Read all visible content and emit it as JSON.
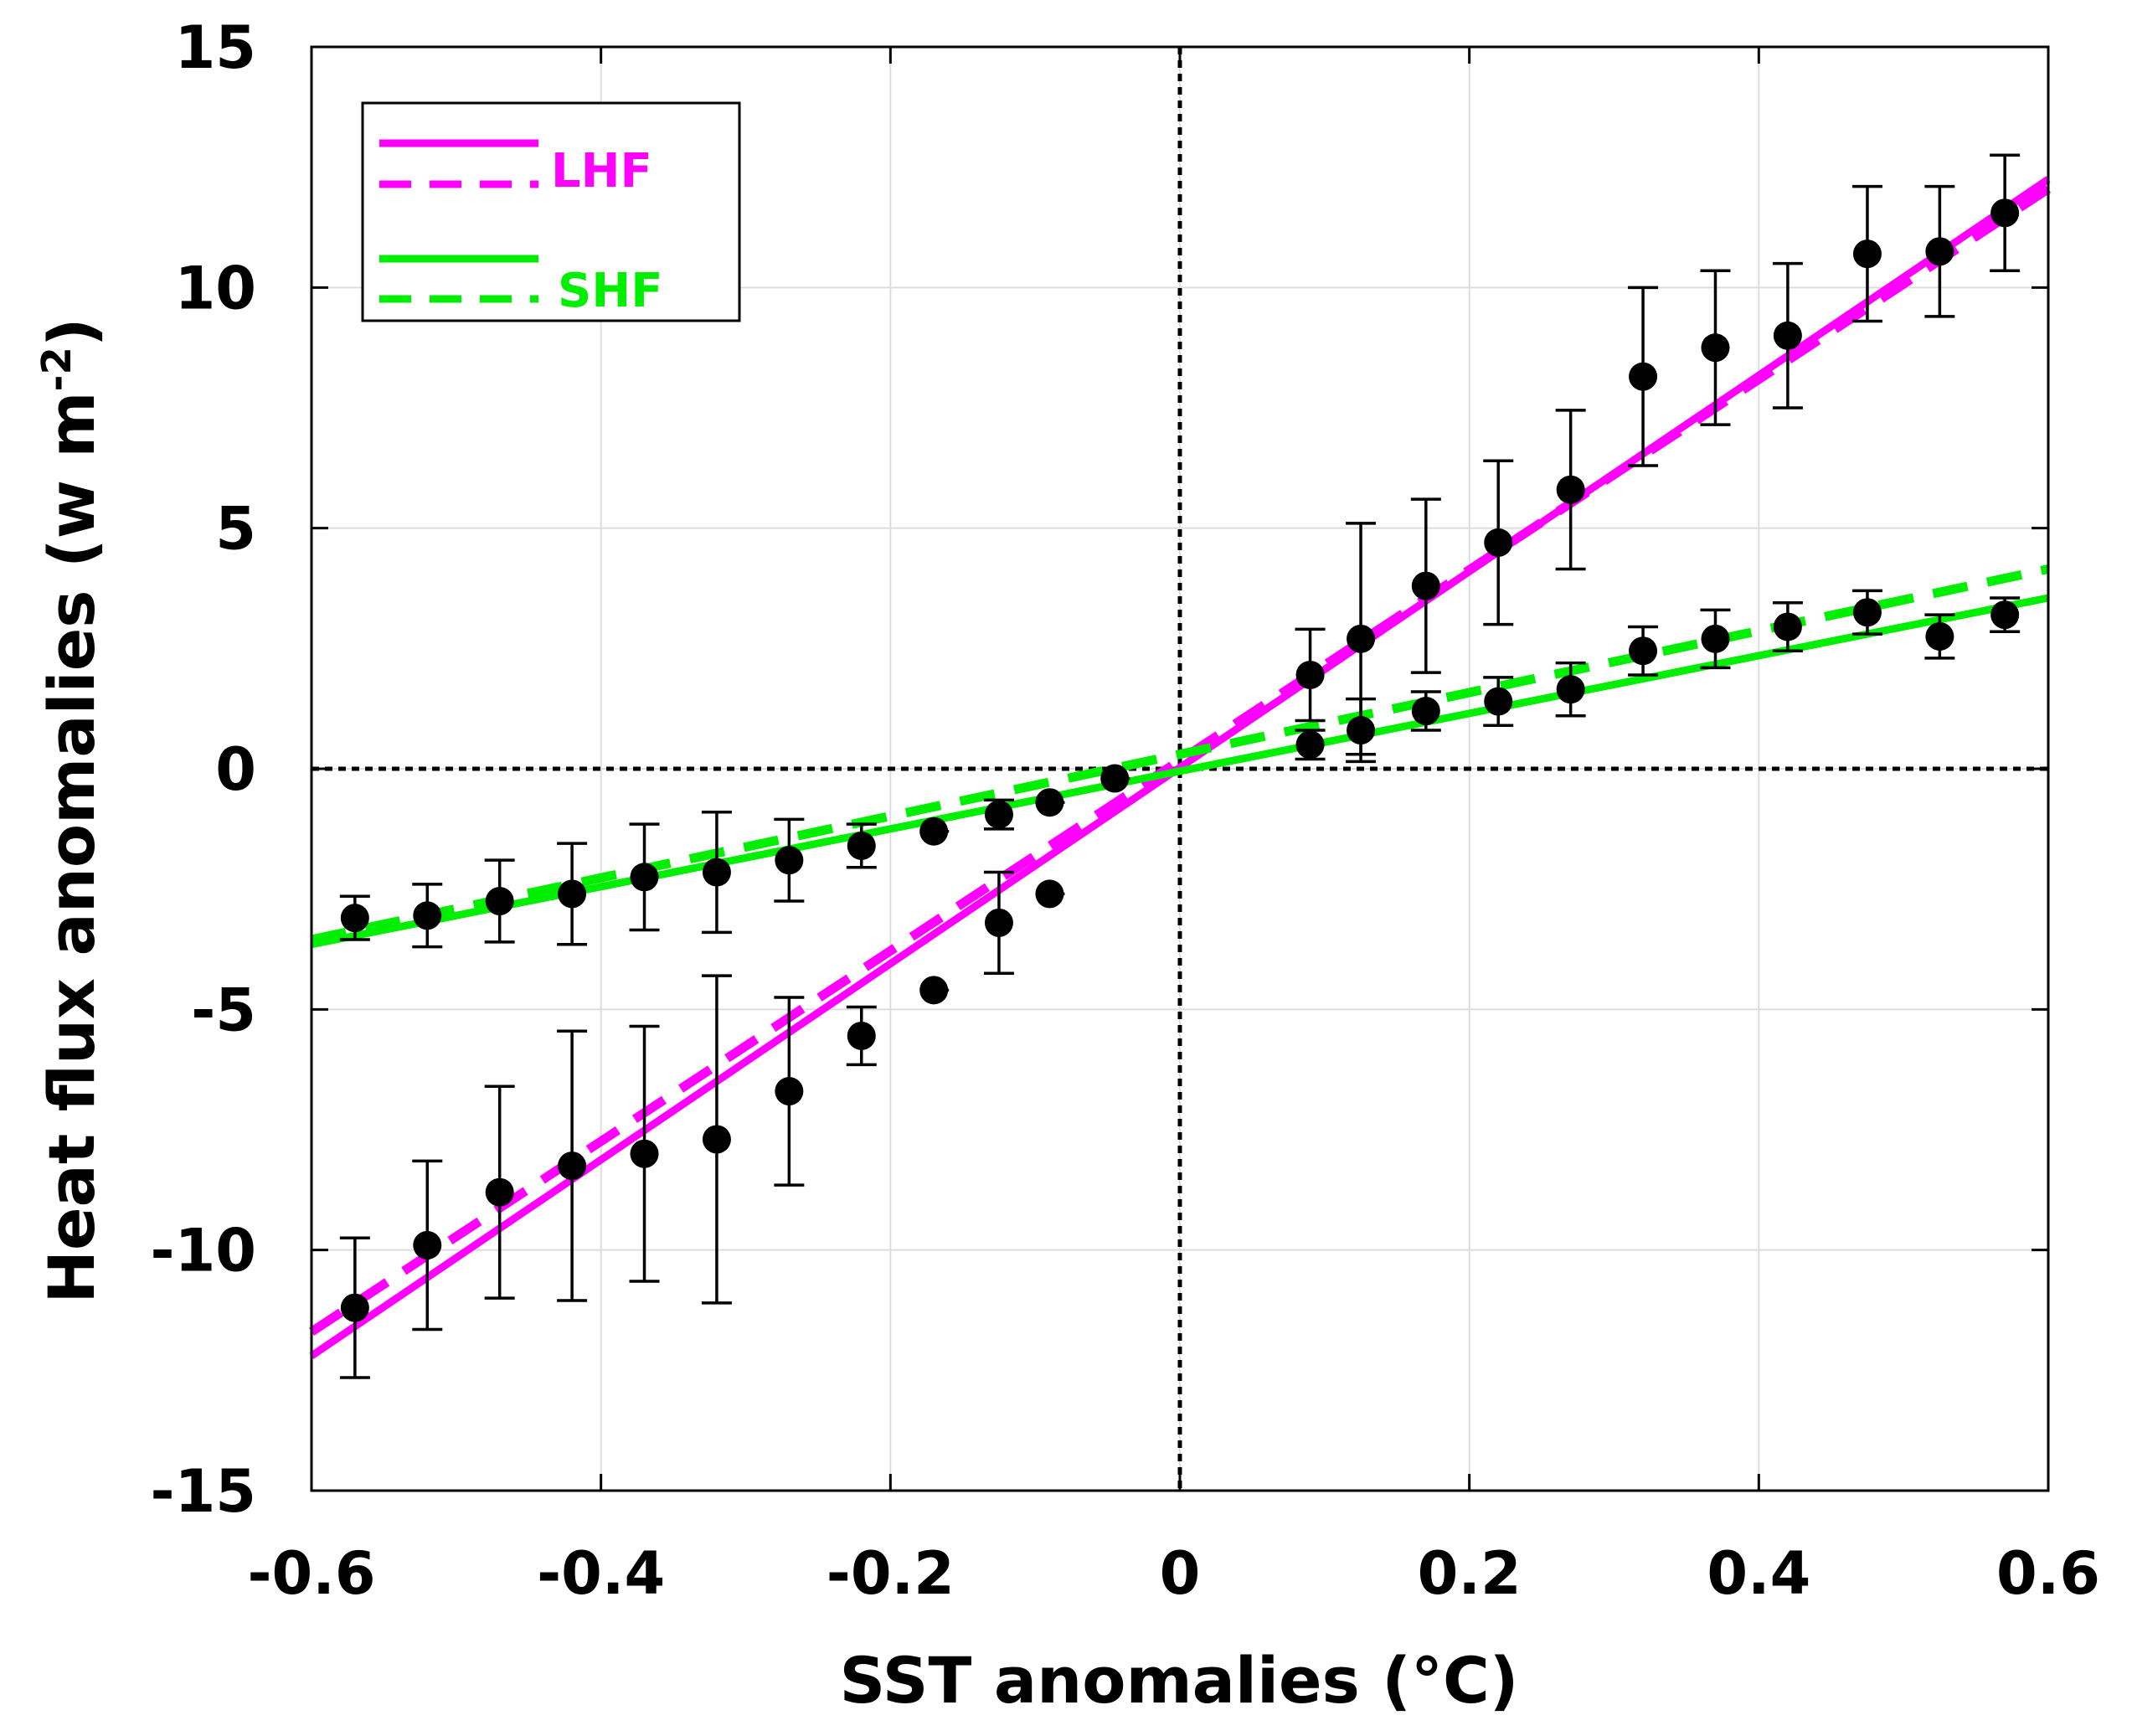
{
  "chart_data": {
    "type": "scatter",
    "xlabel": "SST anomalies (°C)",
    "ylabel_main": "Heat flux anomalies (w m",
    "ylabel_sup": "-2",
    "ylabel_close": ")",
    "xlim": [
      -0.6,
      0.6
    ],
    "ylim": [
      -15,
      15
    ],
    "x_ticks": [
      -0.6,
      -0.4,
      -0.2,
      0,
      0.2,
      0.4,
      0.6
    ],
    "x_tick_labels": [
      "-0.6",
      "-0.4",
      "-0.2",
      "0",
      "0.2",
      "0.4",
      "0.6"
    ],
    "y_ticks": [
      -15,
      -10,
      -5,
      0,
      5,
      10,
      15
    ],
    "y_tick_labels": [
      "-15",
      "-10",
      "-5",
      "0",
      "5",
      "10",
      "15"
    ],
    "grid": true,
    "reference_lines": {
      "x": 0,
      "y": 0,
      "style": "dotted"
    },
    "colors": {
      "lhf": "#ff00ff",
      "shf": "#00ee00",
      "points": "#000000"
    },
    "legend": {
      "placement": "top-left",
      "entries": [
        {
          "label": "LHF",
          "color": "#ff00ff",
          "styles": [
            "solid",
            "dashed"
          ]
        },
        {
          "label": "SHF",
          "color": "#00ee00",
          "styles": [
            "solid",
            "dashed"
          ]
        }
      ]
    },
    "fit_lines": [
      {
        "name": "LHF solid",
        "color": "#ff00ff",
        "style": "solid",
        "x": [
          -0.6,
          0.6
        ],
        "y": [
          -12.2,
          12.25
        ]
      },
      {
        "name": "LHF dashed",
        "color": "#ff00ff",
        "style": "dashed",
        "x": [
          -0.6,
          0.6
        ],
        "y": [
          -11.7,
          12.05
        ]
      },
      {
        "name": "SHF solid",
        "color": "#00ee00",
        "style": "solid",
        "x": [
          -0.6,
          0.6
        ],
        "y": [
          -3.65,
          3.55
        ]
      },
      {
        "name": "SHF dashed",
        "color": "#00ee00",
        "style": "dashed",
        "x": [
          -0.6,
          0.6
        ],
        "y": [
          -3.55,
          4.15
        ]
      }
    ],
    "series": [
      {
        "name": "LHF binned",
        "points": [
          {
            "x": -0.57,
            "y": -11.2,
            "err": 1.45
          },
          {
            "x": -0.52,
            "y": -9.9,
            "err": 1.75
          },
          {
            "x": -0.47,
            "y": -8.8,
            "err": 2.2
          },
          {
            "x": -0.42,
            "y": -8.25,
            "err": 2.8
          },
          {
            "x": -0.37,
            "y": -8.0,
            "err": 2.65
          },
          {
            "x": -0.32,
            "y": -7.7,
            "err": 3.4
          },
          {
            "x": -0.27,
            "y": -6.7,
            "err": 1.95
          },
          {
            "x": -0.22,
            "y": -5.55,
            "err": 0.6
          },
          {
            "x": -0.17,
            "y": -4.6,
            "err": 0
          },
          {
            "x": -0.125,
            "y": -3.2,
            "err": 1.05
          },
          {
            "x": -0.09,
            "y": -2.6,
            "err": 0
          },
          {
            "x": 0.09,
            "y": 1.95,
            "err": 0.95
          },
          {
            "x": 0.125,
            "y": 2.7,
            "err": 2.4
          },
          {
            "x": 0.17,
            "y": 3.8,
            "err": 1.8
          },
          {
            "x": 0.22,
            "y": 4.7,
            "err": 1.7
          },
          {
            "x": 0.27,
            "y": 5.8,
            "err": 1.65
          },
          {
            "x": 0.32,
            "y": 8.15,
            "err": 1.85
          },
          {
            "x": 0.37,
            "y": 8.75,
            "err": 1.6
          },
          {
            "x": 0.42,
            "y": 9.0,
            "err": 1.5
          },
          {
            "x": 0.475,
            "y": 10.7,
            "err": 1.4
          },
          {
            "x": 0.525,
            "y": 10.75,
            "err": 1.35
          },
          {
            "x": 0.57,
            "y": 11.55,
            "err": 1.2
          }
        ]
      },
      {
        "name": "SHF binned",
        "points": [
          {
            "x": -0.57,
            "y": -3.1,
            "err": 0.45
          },
          {
            "x": -0.52,
            "y": -3.05,
            "err": 0.65
          },
          {
            "x": -0.47,
            "y": -2.75,
            "err": 0.85
          },
          {
            "x": -0.42,
            "y": -2.6,
            "err": 1.05
          },
          {
            "x": -0.37,
            "y": -2.25,
            "err": 1.1
          },
          {
            "x": -0.32,
            "y": -2.15,
            "err": 1.25
          },
          {
            "x": -0.27,
            "y": -1.9,
            "err": 0.85
          },
          {
            "x": -0.22,
            "y": -1.6,
            "err": 0.45
          },
          {
            "x": -0.17,
            "y": -1.3,
            "err": 0
          },
          {
            "x": -0.125,
            "y": -0.95,
            "err": 0.3
          },
          {
            "x": -0.09,
            "y": -0.7,
            "err": 0
          },
          {
            "x": -0.045,
            "y": -0.2,
            "err": 0
          },
          {
            "x": 0.09,
            "y": 0.5,
            "err": 0.3
          },
          {
            "x": 0.125,
            "y": 0.8,
            "err": 0.65
          },
          {
            "x": 0.17,
            "y": 1.2,
            "err": 0.4
          },
          {
            "x": 0.22,
            "y": 1.4,
            "err": 0.5
          },
          {
            "x": 0.27,
            "y": 1.65,
            "err": 0.55
          },
          {
            "x": 0.32,
            "y": 2.45,
            "err": 0.5
          },
          {
            "x": 0.37,
            "y": 2.7,
            "err": 0.6
          },
          {
            "x": 0.42,
            "y": 2.95,
            "err": 0.5
          },
          {
            "x": 0.475,
            "y": 3.25,
            "err": 0.45
          },
          {
            "x": 0.525,
            "y": 2.75,
            "err": 0.45
          },
          {
            "x": 0.57,
            "y": 3.2,
            "err": 0.35
          }
        ]
      }
    ]
  }
}
